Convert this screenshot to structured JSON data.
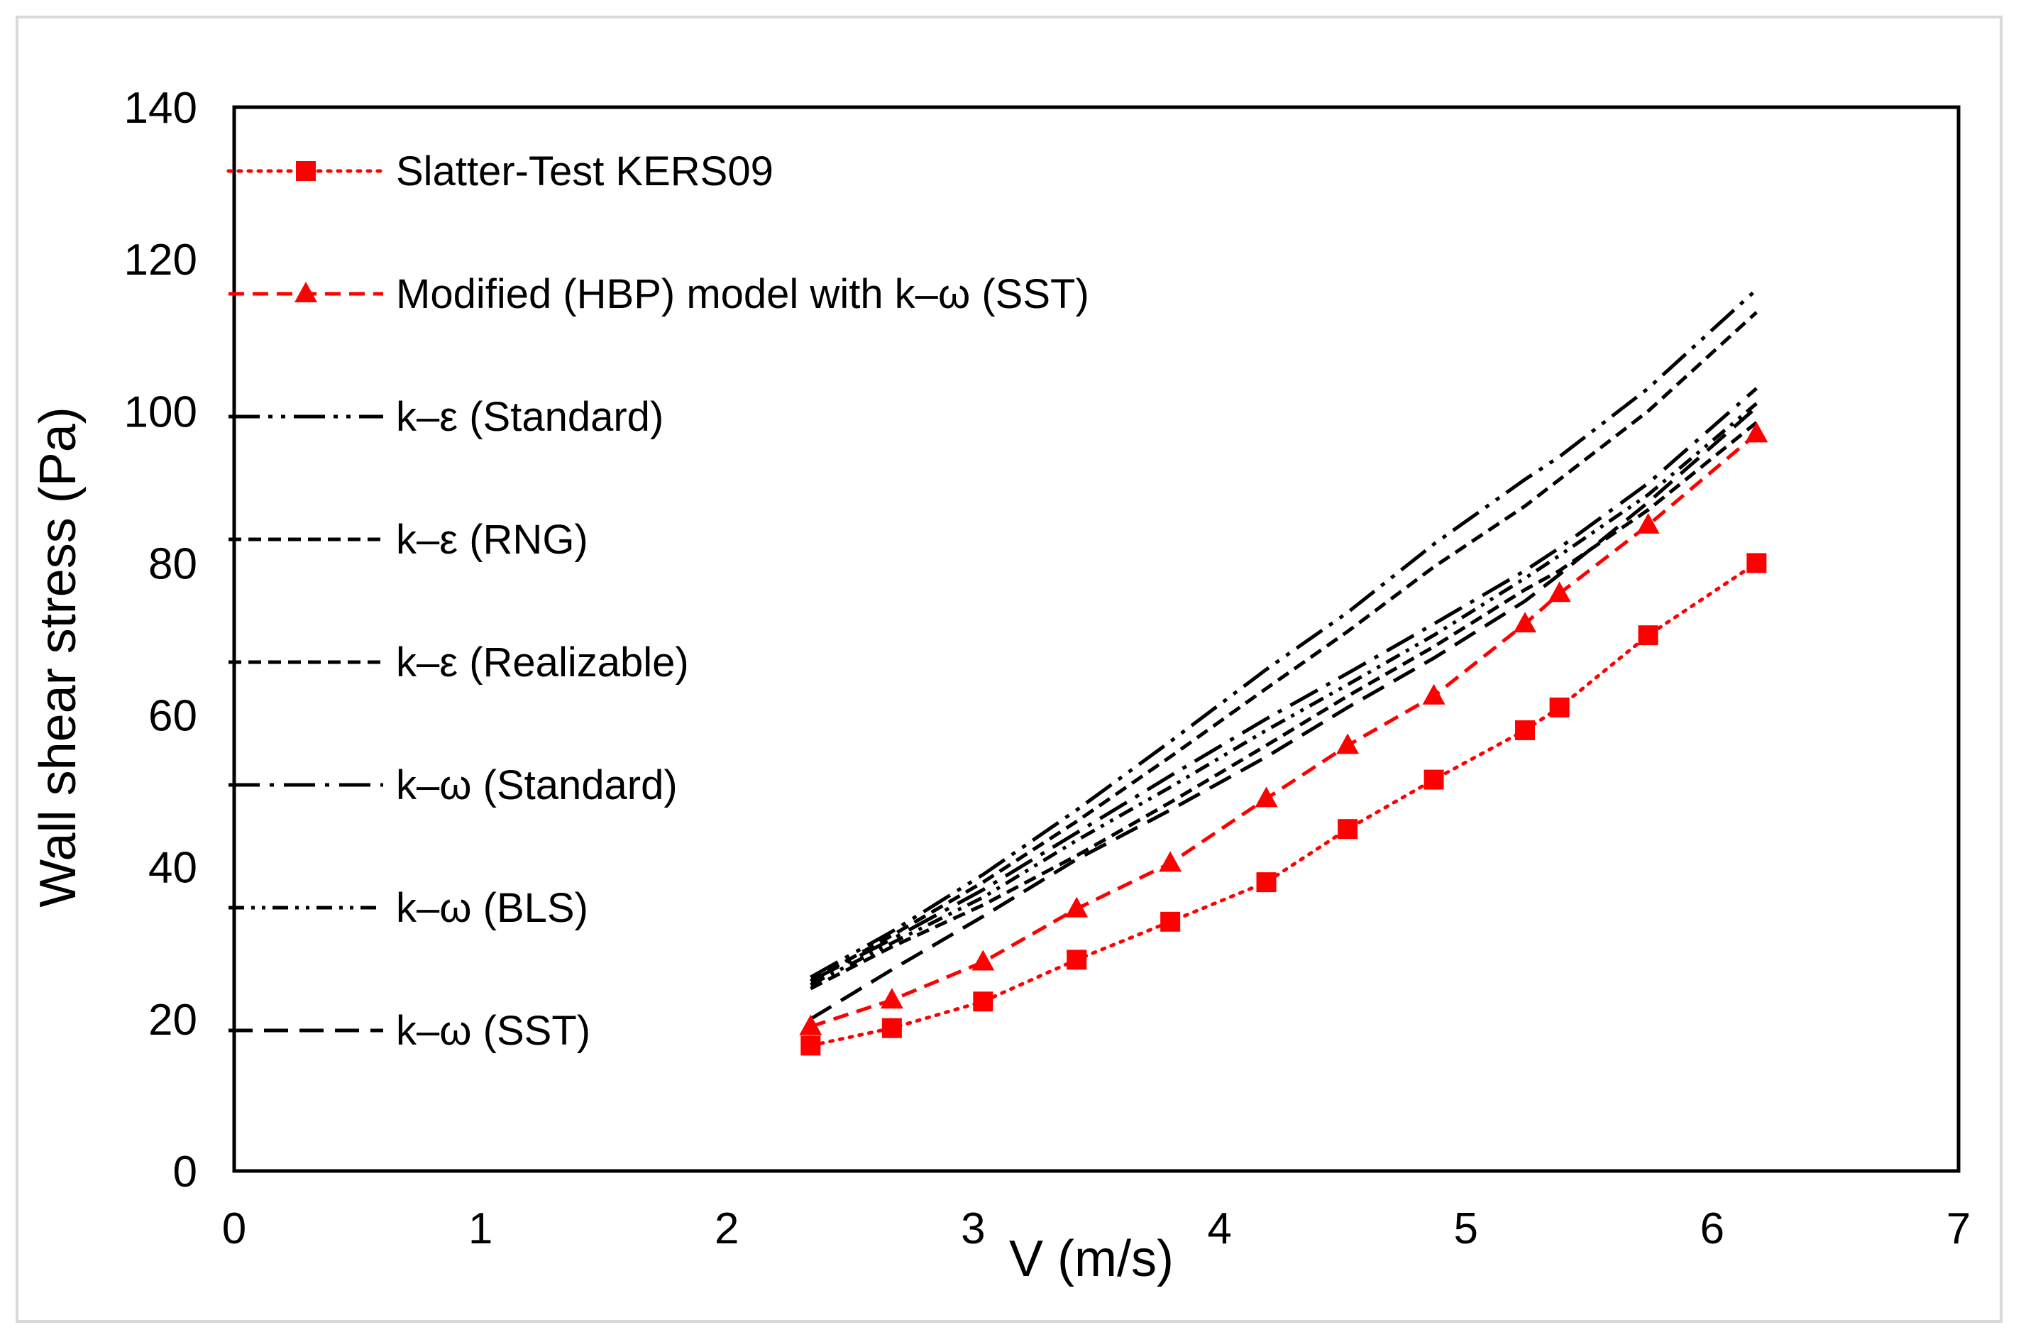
{
  "chart_data": {
    "type": "line",
    "title": "",
    "xlabel": "V (m/s)",
    "ylabel": "Wall shear stress (Pa)",
    "xlim": [
      0,
      7
    ],
    "ylim": [
      0,
      140
    ],
    "xticks": [
      0,
      1,
      2,
      3,
      4,
      5,
      6,
      7
    ],
    "yticks": [
      0,
      20,
      40,
      60,
      80,
      100,
      120,
      140
    ],
    "grid": false,
    "legend_position": "top-left",
    "series": [
      {
        "name": "Slatter-Test KERS09",
        "color": "#ff0000",
        "dash": "dotted",
        "marker": "square",
        "x": [
          2.34,
          2.67,
          3.04,
          3.42,
          3.8,
          4.19,
          4.52,
          4.87,
          5.24,
          5.38,
          5.74,
          6.18
        ],
        "y": [
          16.5,
          18.8,
          22.3,
          27.8,
          32.8,
          38.0,
          45.0,
          51.5,
          58.0,
          61.0,
          70.5,
          80.0
        ]
      },
      {
        "name": "Modified (HBP) model with k–ω (SST)",
        "color": "#ff0000",
        "dash": "dashed",
        "marker": "triangle",
        "x": [
          2.34,
          2.67,
          3.04,
          3.42,
          3.8,
          4.19,
          4.52,
          4.87,
          5.24,
          5.38,
          5.74,
          6.18
        ],
        "y": [
          19.0,
          22.5,
          27.5,
          34.5,
          40.5,
          49.0,
          56.0,
          62.5,
          72.0,
          76.0,
          85.0,
          97.0
        ]
      },
      {
        "name": "k–ε (Standard)",
        "color": "#000000",
        "dash": "long-dash-dot-dot",
        "marker": "none",
        "x": [
          2.34,
          2.67,
          3.04,
          3.42,
          3.8,
          4.19,
          4.52,
          4.87,
          5.24,
          5.38,
          5.74,
          6.18
        ],
        "y": [
          25.5,
          31.5,
          39.0,
          47.5,
          56.5,
          66.0,
          73.5,
          82.5,
          91.0,
          94.0,
          103.0,
          116.0
        ]
      },
      {
        "name": "k–ε (RNG)",
        "color": "#000000",
        "dash": "short-dash",
        "marker": "none",
        "x": [
          2.34,
          2.67,
          3.04,
          3.42,
          3.8,
          4.19,
          4.52,
          4.87,
          5.24,
          5.38,
          5.74,
          6.18
        ],
        "y": [
          25.0,
          31.0,
          38.0,
          46.0,
          54.5,
          63.5,
          71.0,
          79.5,
          87.5,
          91.0,
          100.0,
          113.0
        ]
      },
      {
        "name": "k–ε (Realizable)",
        "color": "#000000",
        "dash": "short-dash",
        "marker": "none",
        "x": [
          2.34,
          2.67,
          3.04,
          3.42,
          3.8,
          4.19,
          4.52,
          4.87,
          5.24,
          5.38,
          5.74,
          6.18
        ],
        "y": [
          24.0,
          29.5,
          35.0,
          41.5,
          48.5,
          56.0,
          62.5,
          69.0,
          76.5,
          79.0,
          87.0,
          98.5
        ]
      },
      {
        "name": "k–ω (Standard)",
        "color": "#000000",
        "dash": "long-dash-dot",
        "marker": "none",
        "x": [
          2.34,
          2.67,
          3.04,
          3.42,
          3.8,
          4.19,
          4.52,
          4.87,
          5.24,
          5.38,
          5.74,
          6.18
        ],
        "y": [
          25.0,
          30.5,
          37.0,
          44.5,
          52.0,
          59.5,
          65.5,
          72.0,
          79.0,
          82.0,
          90.5,
          103.0
        ]
      },
      {
        "name": "k–ω (BLS)",
        "color": "#000000",
        "dash": "dash-dot-dot",
        "marker": "none",
        "x": [
          2.34,
          2.67,
          3.04,
          3.42,
          3.8,
          4.19,
          4.52,
          4.87,
          5.24,
          5.38,
          5.74,
          6.18
        ],
        "y": [
          24.5,
          30.0,
          36.0,
          43.5,
          50.5,
          58.0,
          64.0,
          70.5,
          78.0,
          81.0,
          89.0,
          101.0
        ]
      },
      {
        "name": "k–ω (SST)",
        "color": "#000000",
        "dash": "long-dash",
        "marker": "none",
        "x": [
          2.34,
          2.67,
          3.04,
          3.42,
          3.8,
          4.19,
          4.52,
          4.87,
          5.24,
          5.38,
          5.74,
          6.18
        ],
        "y": [
          20.0,
          26.5,
          33.5,
          41.0,
          47.5,
          54.5,
          61.0,
          67.5,
          75.0,
          78.5,
          88.0,
          100.5
        ]
      }
    ]
  }
}
